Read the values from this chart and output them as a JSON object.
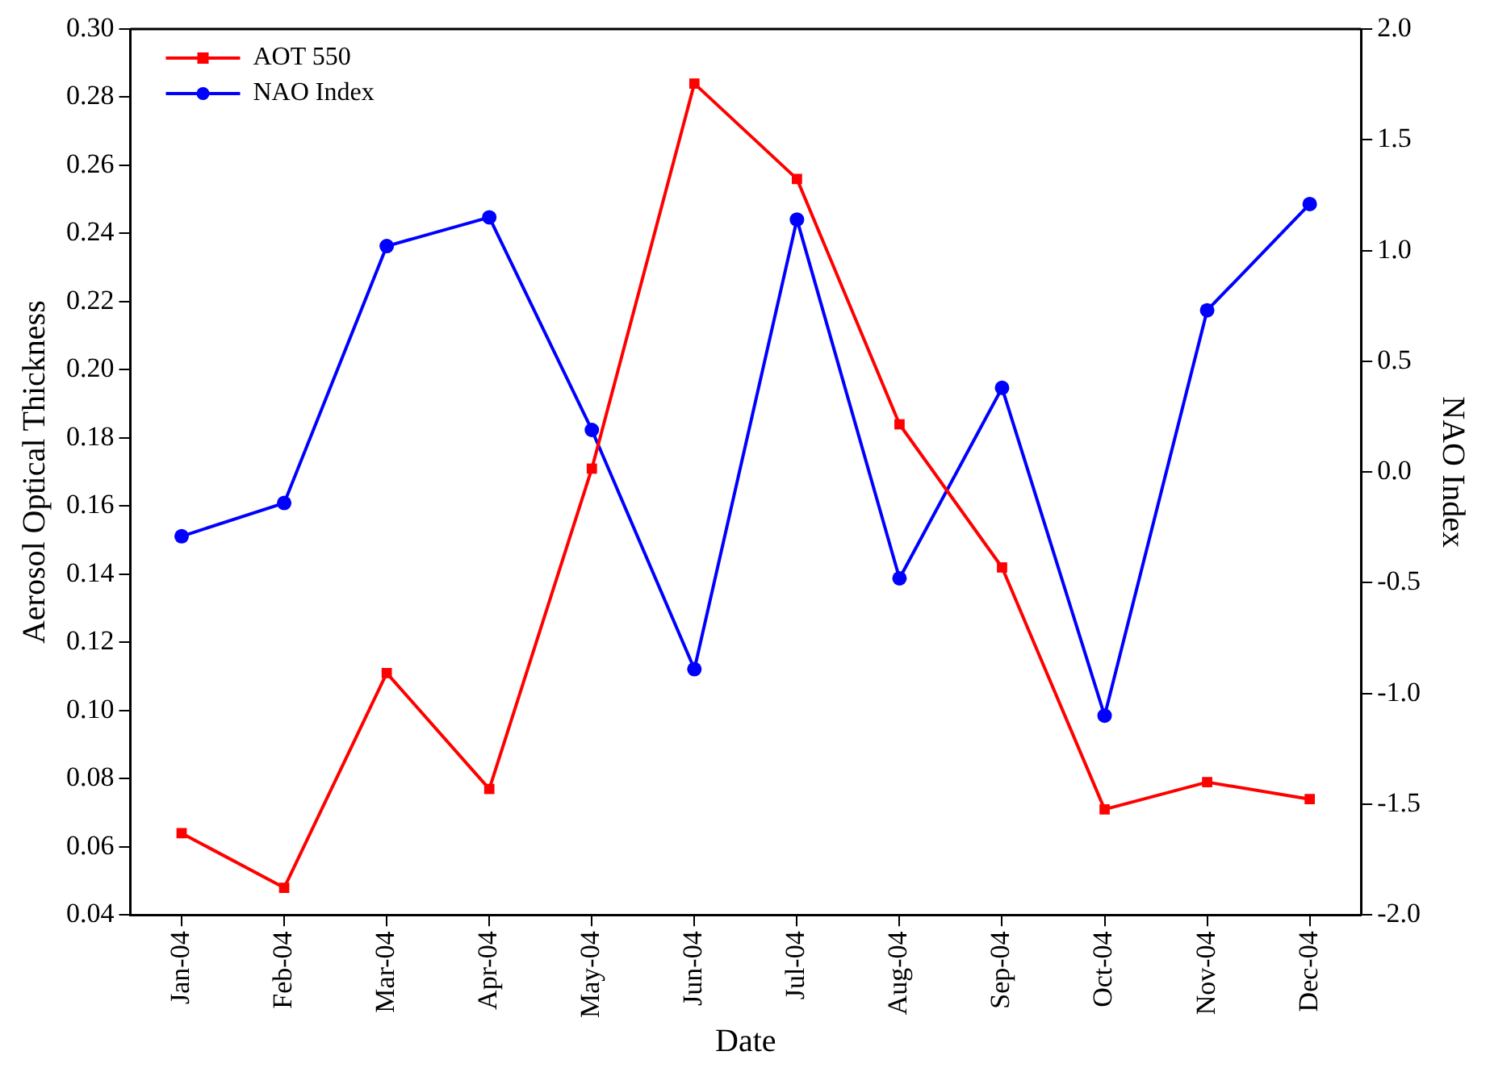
{
  "chart_data": {
    "type": "line",
    "xlabel": "Date",
    "ylabel": "Aerosol Optical Thickness",
    "y2label": "NAO Index",
    "categories": [
      "Jan-04",
      "Feb-04",
      "Mar-04",
      "Apr-04",
      "May-04",
      "Jun-04",
      "Jul-04",
      "Aug-04",
      "Sep-04",
      "Oct-04",
      "Nov-04",
      "Dec-04"
    ],
    "series": [
      {
        "name": "AOT 550",
        "color": "#ff0000",
        "marker": "square",
        "values": [
          0.064,
          0.048,
          0.111,
          0.077,
          0.171,
          0.284,
          0.256,
          0.184,
          0.142,
          0.071,
          0.079,
          0.074
        ]
      },
      {
        "name": "NAO Index",
        "color": "#0000ff",
        "marker": "circle",
        "axis": "y2",
        "values": [
          -0.29,
          -0.14,
          1.02,
          1.15,
          0.19,
          -0.89,
          1.14,
          -0.48,
          0.38,
          -1.1,
          0.73,
          1.21
        ]
      }
    ],
    "ylim": [
      0.04,
      0.3
    ],
    "yticks": [
      {
        "value": 0.04,
        "label": "0.04"
      },
      {
        "value": 0.06,
        "label": "0.06"
      },
      {
        "value": 0.08,
        "label": "0.08"
      },
      {
        "value": 0.1,
        "label": "0.10"
      },
      {
        "value": 0.12,
        "label": "0.12"
      },
      {
        "value": 0.14,
        "label": "0.14"
      },
      {
        "value": 0.16,
        "label": "0.16"
      },
      {
        "value": 0.18,
        "label": "0.18"
      },
      {
        "value": 0.2,
        "label": "0.20"
      },
      {
        "value": 0.22,
        "label": "0.22"
      },
      {
        "value": 0.24,
        "label": "0.24"
      },
      {
        "value": 0.26,
        "label": "0.26"
      },
      {
        "value": 0.28,
        "label": "0.28"
      },
      {
        "value": 0.3,
        "label": "0.30"
      }
    ],
    "y2lim": [
      -2,
      2
    ],
    "y2ticks": [
      {
        "value": -2,
        "label": "-2.0"
      },
      {
        "value": -1.5,
        "label": "-1.5"
      },
      {
        "value": -1,
        "label": "-1.0"
      },
      {
        "value": -0.5,
        "label": "-0.5"
      },
      {
        "value": 0,
        "label": "0.0"
      },
      {
        "value": 0.5,
        "label": "0.5"
      },
      {
        "value": 1,
        "label": "1.0"
      },
      {
        "value": 1.5,
        "label": "1.5"
      },
      {
        "value": 2,
        "label": "2.0"
      }
    ],
    "grid": false,
    "legend": "top left",
    "line_style": "solid"
  }
}
